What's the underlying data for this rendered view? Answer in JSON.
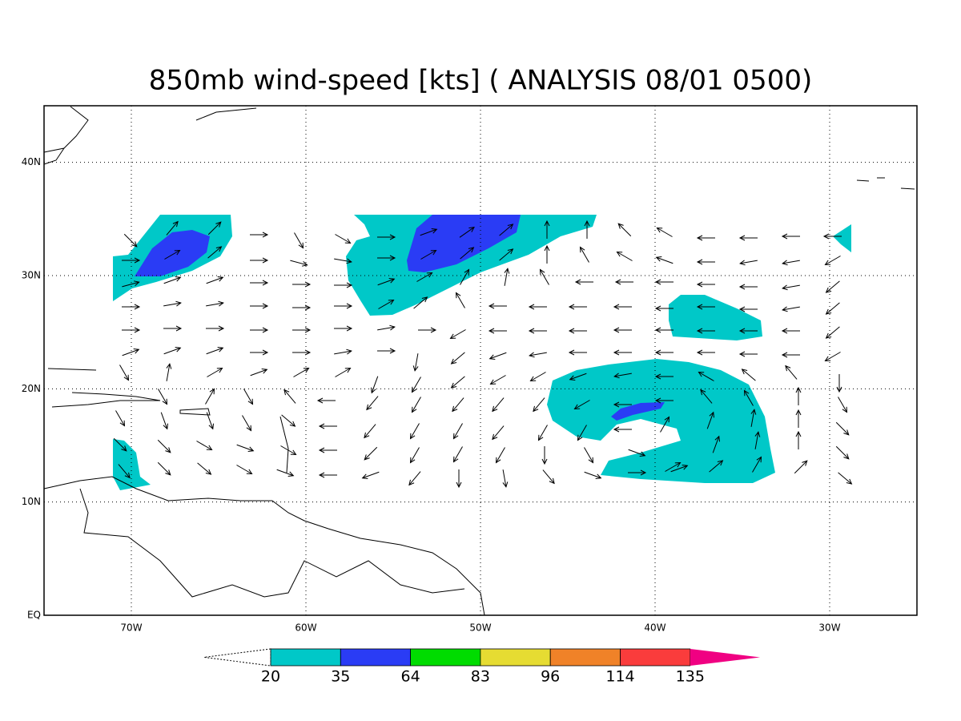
{
  "header": {
    "title": "850mb wind-speed [kts] ( ANALYSIS 08/01 0500)"
  },
  "map": {
    "lonlim": [
      -75,
      -25
    ],
    "latlim": [
      0,
      45
    ],
    "lon_ticks": [
      {
        "value": -70,
        "label": "70W"
      },
      {
        "value": -60,
        "label": "60W"
      },
      {
        "value": -50,
        "label": "50W"
      },
      {
        "value": -40,
        "label": "40W"
      },
      {
        "value": -30,
        "label": "30W"
      }
    ],
    "lat_ticks": [
      {
        "value": 0,
        "label": "EQ"
      },
      {
        "value": 10,
        "label": "10N"
      },
      {
        "value": 20,
        "label": "20N"
      },
      {
        "value": 30,
        "label": "30N"
      },
      {
        "value": 40,
        "label": "40N"
      }
    ],
    "grid": true
  },
  "colorbar": {
    "levels": [
      20,
      35,
      64,
      83,
      96,
      114,
      135
    ],
    "colors": [
      "#00c8c8",
      "#2a3cf5",
      "#00dc00",
      "#e6dc32",
      "#f08228",
      "#fa3c3c",
      "#f00082"
    ]
  }
}
